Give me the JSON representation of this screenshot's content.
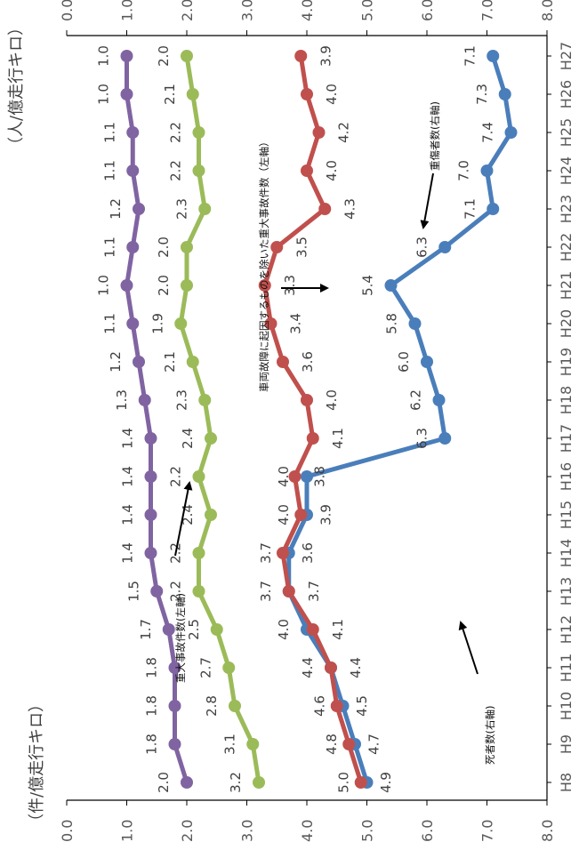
{
  "chart_data": {
    "type": "line",
    "orientation": "rotated-90",
    "categories": [
      "H8",
      "H9",
      "H10",
      "H11",
      "H12",
      "H13",
      "H14",
      "H15",
      "H16",
      "H17",
      "H18",
      "H19",
      "H20",
      "H21",
      "H22",
      "H23",
      "H24",
      "H25",
      "H26",
      "H27"
    ],
    "left_axis": {
      "title": "（件/億走行キロ）",
      "ticks": [
        "0.0",
        "1.0",
        "2.0",
        "3.0",
        "4.0",
        "5.0",
        "6.0",
        "7.0",
        "8.0"
      ],
      "range": [
        0,
        8
      ]
    },
    "right_axis": {
      "title": "（人/億走行キロ）",
      "ticks": [
        "0.0",
        "1.0",
        "2.0",
        "3.0",
        "4.0",
        "5.0",
        "6.0",
        "7.0",
        "8.0"
      ],
      "range": [
        0,
        8
      ]
    },
    "grid": false,
    "series": [
      {
        "name": "重大事故件数（左軸）",
        "color": "#4a7ebb",
        "values": [
          5.0,
          4.8,
          4.6,
          4.4,
          4.0,
          3.7,
          3.7,
          4.0,
          4.0,
          6.3,
          6.2,
          6.0,
          5.8,
          5.4,
          6.3,
          7.1,
          7.0,
          7.4,
          7.3,
          7.1
        ],
        "labels": [
          "5.0",
          "4.8",
          "4.6",
          "4.4",
          "4.0",
          "3.7",
          "3.7",
          "4.0",
          "4.0",
          "6.3",
          "6.2",
          "6.0",
          "5.8",
          "5.4",
          "6.3",
          "7.1",
          "7.0",
          "7.4",
          "7.3",
          "7.1"
        ]
      },
      {
        "name": "車両故障に起因するものを除いた重大事故件数（左軸）",
        "color": "#c0504d",
        "values": [
          4.9,
          4.7,
          4.5,
          4.4,
          4.1,
          3.7,
          3.6,
          3.9,
          3.8,
          4.1,
          4.0,
          3.6,
          3.4,
          3.3,
          3.5,
          4.3,
          4.0,
          4.2,
          4.0,
          3.9
        ],
        "labels": [
          "4.9",
          "4.7",
          "4.5",
          "4.4",
          "4.1",
          "3.7",
          "3.6",
          "3.9",
          "3.8",
          "4.1",
          "4.0",
          "3.6",
          "3.4",
          "3.3",
          "3.5",
          "4.3",
          "4.0",
          "4.2",
          "4.0",
          "3.9"
        ]
      },
      {
        "name": "重傷者数（右軸）",
        "color": "#9bbb59",
        "values": [
          3.2,
          3.1,
          2.8,
          2.7,
          2.5,
          2.2,
          2.2,
          2.4,
          2.2,
          2.4,
          2.3,
          2.1,
          1.9,
          2.0,
          2.0,
          2.3,
          2.2,
          2.2,
          2.1,
          2.0
        ],
        "labels": [
          "3.2",
          "3.1",
          "2.8",
          "2.7",
          "2.5",
          "2.2",
          "2.2",
          "2.4",
          "2.2",
          "2.4",
          "2.3",
          "2.1",
          "1.9",
          "2.0",
          "2.0",
          "2.3",
          "2.2",
          "2.2",
          "2.1",
          "2.0"
        ]
      },
      {
        "name": "死者数（右軸）",
        "color": "#8064a2",
        "values": [
          2.0,
          1.8,
          1.8,
          1.8,
          1.7,
          1.5,
          1.4,
          1.4,
          1.4,
          1.4,
          1.3,
          1.2,
          1.1,
          1.0,
          1.1,
          1.2,
          1.1,
          1.1,
          1.0,
          1.0
        ],
        "labels": [
          "2.0",
          "1.8",
          "1.8",
          "1.8",
          "1.7",
          "1.5",
          "1.4",
          "1.4",
          "1.4",
          "1.4",
          "1.3",
          "1.2",
          "1.1",
          "1.0",
          "1.1",
          "1.2",
          "1.1",
          "1.1",
          "1.0",
          "1.0"
        ]
      }
    ],
    "annotations": [
      {
        "text": "重大事故件数(左軸)",
        "points_to": "重大事故件数（左軸）"
      },
      {
        "text": "車両故障に起因するものを除いた重大事故件数（左軸）",
        "points_to": "車両故障に起因するものを除いた重大事故件数（左軸）"
      },
      {
        "text": "重傷者数(右軸)",
        "points_to": "重傷者数（右軸）"
      },
      {
        "text": "死者数(右軸)",
        "points_to": "死者数（右軸）"
      }
    ]
  }
}
